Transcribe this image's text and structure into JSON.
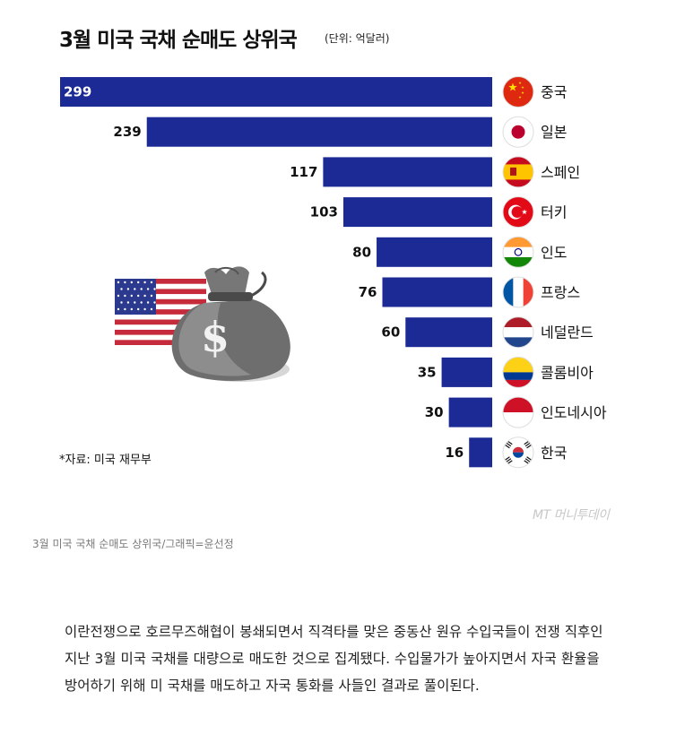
{
  "chart_data": {
    "type": "bar",
    "orientation": "horizontal",
    "title": "3월 미국 국채 순매도 상위국",
    "unit_label": "(단위: 억달러)",
    "categories": [
      "중국",
      "일본",
      "스페인",
      "터키",
      "인도",
      "프랑스",
      "네덜란드",
      "콜롬비아",
      "인도네시아",
      "한국"
    ],
    "values": [
      299,
      239,
      117,
      103,
      80,
      76,
      60,
      35,
      30,
      16
    ],
    "value_labels": [
      "299",
      "239",
      "117",
      "103",
      "80",
      "76",
      "60",
      "35",
      "30",
      "16"
    ],
    "flags": [
      "china-flag-icon",
      "japan-flag-icon",
      "spain-flag-icon",
      "turkey-flag-icon",
      "india-flag-icon",
      "france-flag-icon",
      "netherlands-flag-icon",
      "colombia-flag-icon",
      "indonesia-flag-icon",
      "korea-flag-icon"
    ],
    "bar_color": "#1b2a94",
    "xlim": [
      0,
      299
    ],
    "source": "*자료: 미국 재무부",
    "grid": false,
    "legend": "none"
  },
  "illustration": {
    "icons": [
      "us-flag-icon",
      "money-bag-icon"
    ],
    "bag_symbol": "$"
  },
  "watermark": "MT 머니투데이",
  "caption": "3월 미국 국채 순매도 상위국/그래픽=윤선정",
  "article": {
    "paragraph": "이란전쟁으로 호르무즈해협이 봉쇄되면서 직격타를 맞은 중동산 원유 수입국들이 전쟁 직후인 지난 3월 미국 국채를 대량으로 매도한 것으로 집계됐다. 수입물가가 높아지면서 자국 환율을 방어하기 위해 미 국채를 매도하고 자국 통화를 사들인 결과로 풀이된다."
  }
}
